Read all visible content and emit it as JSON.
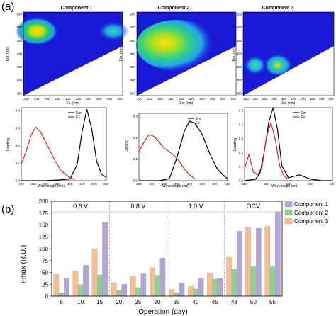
{
  "panel_labels": {
    "a": "(a)",
    "b": "(b)"
  },
  "colors": {
    "background_blue": "#1a1ad6",
    "em_line": "#000000",
    "ex_line": "#e02020",
    "component1": "#b3a6d6",
    "component2": "#8fd18f",
    "component3": "#f7bf94"
  },
  "contour_plots": [
    {
      "title": "Component 1",
      "xlabel": "Ex. (nm)",
      "ylabel": "Em. (nm)",
      "xticks": [
        "220",
        "240",
        "260",
        "280",
        "300",
        "320",
        "340",
        "360",
        "380",
        "400"
      ],
      "yticks": [
        "550",
        "500",
        "450",
        "400",
        "350",
        "300",
        "250"
      ]
    },
    {
      "title": "Component 2",
      "xlabel": "Ex. (nm)",
      "ylabel": "Em. (nm)",
      "xticks": [
        "220",
        "240",
        "260",
        "280",
        "300",
        "320",
        "340",
        "360",
        "380",
        "400"
      ],
      "yticks": [
        "550",
        "500",
        "450",
        "400",
        "350",
        "300",
        "250"
      ]
    },
    {
      "title": "Component 3",
      "xlabel": "Ex. (nm)",
      "ylabel": "Em. (nm)",
      "xticks": [
        "220",
        "240",
        "260",
        "280",
        "300",
        "320",
        "340",
        "360",
        "380",
        "400"
      ],
      "yticks": [
        "550",
        "500",
        "450",
        "400",
        "350",
        "300",
        "250"
      ]
    }
  ],
  "spectra_plots": [
    {
      "xlabel": "Wavelength (nm)",
      "ylabel": "Loading",
      "xticks": [
        "200",
        "250",
        "300",
        "350",
        "400",
        "450",
        "500",
        "550"
      ],
      "yticks": [
        "0.4",
        "0.3",
        "0.2",
        "0.1",
        "0.0"
      ],
      "legend": [
        "Em",
        "Ex"
      ]
    },
    {
      "xlabel": "Wavelength (nm)",
      "ylabel": "Loading",
      "xticks": [
        "200",
        "250",
        "300",
        "350",
        "400",
        "450",
        "500",
        "550"
      ],
      "yticks": [
        "0.3",
        "0.2",
        "0.1",
        "0.0"
      ],
      "legend": [
        "Em",
        "Ex"
      ]
    },
    {
      "xlabel": "Wavelength (nm)",
      "ylabel": "Loading",
      "xticks": [
        "200",
        "300",
        "400",
        "500",
        "600"
      ],
      "yticks": [
        "0.5",
        "0.4",
        "0.3",
        "0.2",
        "0.1",
        "0.0"
      ],
      "legend": [
        "Em",
        "Ex"
      ]
    }
  ],
  "chart_data": [
    {
      "type": "line",
      "panel": "a-1",
      "xlim": [
        200,
        550
      ],
      "ylim": [
        0,
        0.45
      ],
      "series": [
        {
          "name": "Em",
          "x": [
            200,
            300,
            360,
            400,
            430,
            450,
            470,
            490,
            510,
            530,
            550
          ],
          "y": [
            0,
            0,
            0.005,
            0.01,
            0.1,
            0.3,
            0.44,
            0.32,
            0.12,
            0.04,
            0.02
          ]
        },
        {
          "name": "Ex",
          "x": [
            200,
            220,
            240,
            260,
            280,
            300,
            320,
            340,
            360,
            380,
            400,
            420
          ],
          "y": [
            0.1,
            0.18,
            0.28,
            0.33,
            0.3,
            0.24,
            0.18,
            0.12,
            0.07,
            0.04,
            0.02,
            0.005
          ]
        }
      ]
    },
    {
      "type": "line",
      "panel": "a-2",
      "xlim": [
        200,
        550
      ],
      "ylim": [
        0,
        0.35
      ],
      "series": [
        {
          "name": "Em",
          "x": [
            200,
            280,
            320,
            350,
            380,
            400,
            420,
            450,
            480,
            510,
            540,
            550
          ],
          "y": [
            0,
            0,
            0.01,
            0.12,
            0.26,
            0.31,
            0.3,
            0.24,
            0.14,
            0.06,
            0.02,
            0.01
          ]
        },
        {
          "name": "Ex",
          "x": [
            200,
            220,
            240,
            260,
            280,
            300,
            320,
            340,
            360,
            380,
            400,
            420
          ],
          "y": [
            0.15,
            0.2,
            0.24,
            0.23,
            0.2,
            0.17,
            0.15,
            0.13,
            0.1,
            0.06,
            0.03,
            0.01
          ]
        }
      ]
    },
    {
      "type": "line",
      "panel": "a-3",
      "xlim": [
        200,
        600
      ],
      "ylim": [
        0,
        0.5
      ],
      "series": [
        {
          "name": "Em",
          "x": [
            200,
            250,
            270,
            290,
            310,
            330,
            350,
            370,
            400,
            450,
            500,
            550,
            600
          ],
          "y": [
            0,
            0.01,
            0.05,
            0.2,
            0.4,
            0.5,
            0.35,
            0.1,
            0.02,
            0.04,
            0.01,
            0,
            0
          ]
        },
        {
          "name": "Ex",
          "x": [
            200,
            220,
            240,
            260,
            280,
            300,
            320,
            340,
            360,
            380,
            400
          ],
          "y": [
            0.08,
            0.18,
            0.06,
            0.04,
            0.1,
            0.3,
            0.4,
            0.28,
            0.1,
            0.03,
            0.01
          ]
        }
      ]
    },
    {
      "type": "bar",
      "panel": "b",
      "xlabel": "Operation (day)",
      "ylabel": "Fmax (R.U.)",
      "ylim": [
        0,
        200
      ],
      "yticks": [
        0,
        25,
        50,
        75,
        100,
        125,
        150,
        175,
        200
      ],
      "categories": [
        "5",
        "10",
        "15",
        "20",
        "25",
        "30",
        "35",
        "40",
        "45",
        "48",
        "50",
        "55"
      ],
      "stages": [
        {
          "label": "0.6 V",
          "from": 0,
          "to": 3
        },
        {
          "label": "0.8 V",
          "from": 3,
          "to": 6
        },
        {
          "label": "1.0 V",
          "from": 6,
          "to": 9
        },
        {
          "label": "OCV",
          "from": 9,
          "to": 12
        }
      ],
      "series": [
        {
          "name": "Component 1",
          "values": [
            38,
            65,
            155,
            25,
            47,
            80,
            27,
            37,
            38,
            137,
            143,
            178
          ]
        },
        {
          "name": "Component 2",
          "values": [
            7,
            24,
            45,
            12,
            18,
            44,
            7,
            15,
            36,
            57,
            62,
            62
          ]
        },
        {
          "name": "Component 3",
          "values": [
            46,
            53,
            100,
            29,
            43,
            60,
            14,
            22,
            48,
            82,
            145,
            147
          ]
        }
      ],
      "legend": [
        "Component 1",
        "Component 2",
        "Component 3"
      ]
    }
  ]
}
